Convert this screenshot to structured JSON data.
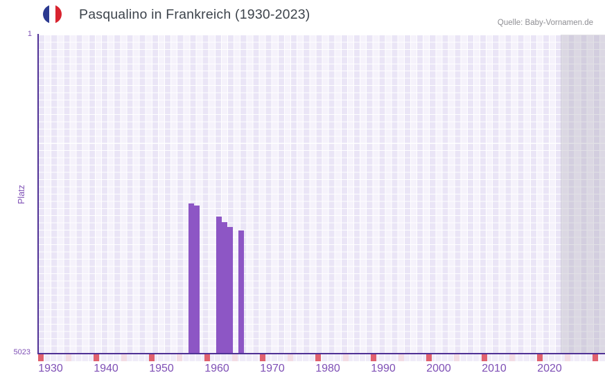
{
  "header": {
    "title": "Pasqualino in Frankreich (1930-2023)",
    "source": "Quelle: Baby-Vornamen.de",
    "flag_icon": "france-flag-icon"
  },
  "axes": {
    "y_title": "Platz",
    "y_top_tick": "1",
    "y_bottom_tick": "5023"
  },
  "chart_data": {
    "type": "bar",
    "title": "Pasqualino in Frankreich (1930-2023)",
    "xlabel": "",
    "ylabel": "Platz",
    "x_axis": {
      "range": [
        1930,
        2023
      ],
      "tick_labels": [
        1930,
        1940,
        1950,
        1960,
        1970,
        1980,
        1990,
        2000,
        2010,
        2020
      ]
    },
    "y_axis": {
      "min": 1,
      "max": 5023,
      "inverted": true,
      "tick_labels": [
        "1",
        "5023"
      ]
    },
    "series": [
      {
        "name": "Platz",
        "points": [
          {
            "year": 1955,
            "rank": 2665
          },
          {
            "year": 1956,
            "rank": 2700
          },
          {
            "year": 1960,
            "rank": 2870
          },
          {
            "year": 1961,
            "rank": 2955
          },
          {
            "year": 1962,
            "rank": 3035
          },
          {
            "year": 1964,
            "rank": 3090
          }
        ]
      }
    ],
    "layout_hints": {
      "grid": true,
      "legend": "none",
      "future_region_after_year": 2023,
      "decade_markers": [
        1930,
        1940,
        1950,
        1960,
        1970,
        1980,
        1990,
        2000,
        2010,
        2020,
        2030
      ],
      "half_decade_markers": [
        1935,
        1945,
        1955,
        1965,
        1975,
        1985,
        1995,
        2005,
        2015,
        2025
      ]
    },
    "colors": {
      "bar": "#8d56c5",
      "axis_line": "#4f3195",
      "tick_label": "#7e4fb5",
      "plot_cell_light": "#f5f2fb",
      "plot_cell_dark": "#eae5f6",
      "future_veil": "rgba(150,147,166,0.28)",
      "strip_cell": "#f0ecf8",
      "strip_red": "#e0616e",
      "strip_pink": "#f3dce4",
      "flag_blue": "#2b3990",
      "flag_white": "#ffffff",
      "flag_red": "#d8232f",
      "title_text": "#3d444c",
      "source_text": "#8f8f94"
    }
  }
}
